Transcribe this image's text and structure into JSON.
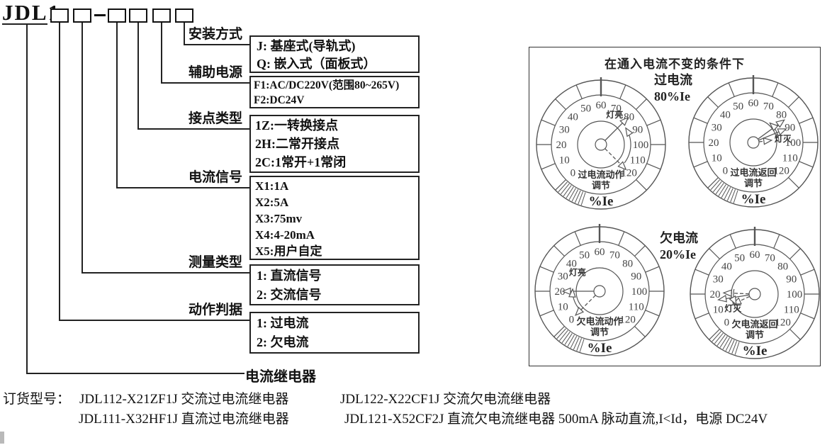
{
  "model_tree": {
    "code_prefix": "JDL1",
    "separator": "-",
    "relay_label": "电流继电器",
    "branches": [
      {
        "label": "安装方式",
        "options": [
          "J: 基座式(导轨式)",
          "Q: 嵌入式（面板式）"
        ]
      },
      {
        "label": "辅助电源",
        "options": [
          "F1:AC/DC220V(范围80~265V)",
          "F2:DC24V"
        ]
      },
      {
        "label": "接点类型",
        "options": [
          "1Z:一转换接点",
          "2H:二常开接点",
          "2C:1常开+1常闭"
        ]
      },
      {
        "label": "电流信号",
        "options": [
          "X1:1A",
          "X2:5A",
          "X3:75mv",
          "X4:4-20mA",
          "X5:用户自定"
        ]
      },
      {
        "label": "测量类型",
        "options": [
          "1: 直流信号",
          "2: 交流信号"
        ]
      },
      {
        "label": "动作判据",
        "options": [
          "1: 过电流",
          "2: 欠电流"
        ]
      }
    ]
  },
  "order_info": {
    "prefix": "订货型号：",
    "row1_left": "JDL112-X21ZF1J 交流过电流继电器",
    "row1_right": "JDL122-X22CF1J 交流欠电流继电器",
    "row2_left": "JDL111-X32HF1J 直流过电流继电器",
    "row2_right": "JDL121-X52CF2J 直流欠电流继电器 500mA 脉动直流,I<Id，电源 DC24V"
  },
  "panel": {
    "title": "在通入电流不变的条件下",
    "groups": [
      {
        "name": "过电流",
        "setpoint": "80%Ie"
      },
      {
        "name": "欠电流",
        "setpoint": "20%Ie"
      }
    ],
    "gauges": [
      {
        "id": "overcurrent-action",
        "adjust_lines": [
          "过电流动作",
          "调节"
        ],
        "lamp": "灯亮",
        "unit": "%Ie",
        "numbers": [
          0,
          10,
          20,
          30,
          40,
          50,
          60,
          70,
          80,
          90,
          100,
          110,
          120
        ],
        "arrows": [
          {
            "style": "solid",
            "value": 80
          },
          {
            "style": "dashed",
            "value": 120
          }
        ]
      },
      {
        "id": "overcurrent-return",
        "adjust_lines": [
          "过电流返回",
          "调节"
        ],
        "lamp": "灯灭",
        "unit": "%Ie",
        "numbers": [
          0,
          10,
          20,
          30,
          40,
          50,
          60,
          70,
          80,
          90,
          100,
          110,
          120
        ],
        "arrows": [
          {
            "style": "solid",
            "value": 84
          },
          {
            "style": "solid",
            "value": 90
          },
          {
            "style": "dashed",
            "value": 97
          }
        ]
      },
      {
        "id": "undercurrent-action",
        "adjust_lines": [
          "欠电流动作",
          "调节"
        ],
        "lamp": "灯亮",
        "unit": "%Ie",
        "numbers": [
          0,
          10,
          20,
          30,
          40,
          50,
          60,
          70,
          80,
          90,
          100,
          110,
          120
        ],
        "arrows": [
          {
            "style": "solid",
            "value": 20
          },
          {
            "style": "dashed",
            "value": 0
          }
        ]
      },
      {
        "id": "undercurrent-return",
        "adjust_lines": [
          "欠电流返回",
          "调节"
        ],
        "lamp": "灯灭",
        "unit": "%Ie",
        "numbers": [
          0,
          10,
          20,
          30,
          40,
          50,
          60,
          70,
          80,
          90,
          100,
          110,
          120
        ],
        "arrows": [
          {
            "style": "solid",
            "value": 16
          },
          {
            "style": "dashed",
            "value": 21
          },
          {
            "style": "dashed",
            "value": 9
          }
        ]
      }
    ]
  }
}
